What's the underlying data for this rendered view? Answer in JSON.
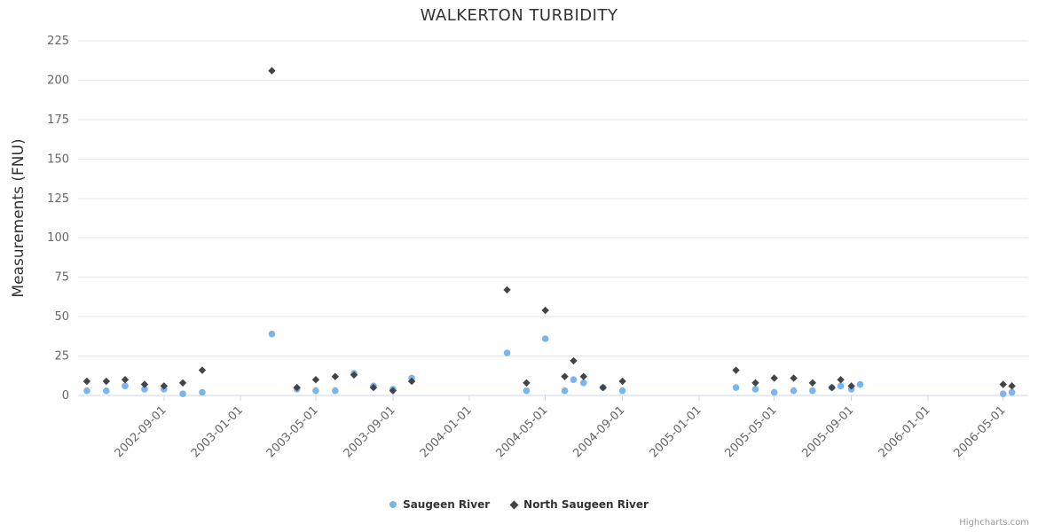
{
  "credits_label": "Highcharts.com",
  "chart_data": {
    "type": "scatter",
    "title": "WALKERTON TURBIDITY",
    "xlabel": "",
    "ylabel": "Measurements (FNU)",
    "ylim": [
      0,
      225
    ],
    "y_ticks": [
      0,
      25,
      50,
      75,
      100,
      125,
      150,
      175,
      200,
      225
    ],
    "x_ticks": [
      "2002-09-01",
      "2003-01-01",
      "2003-05-01",
      "2003-09-01",
      "2004-01-01",
      "2004-05-01",
      "2004-09-01",
      "2005-01-01",
      "2005-05-01",
      "2005-09-01",
      "2006-01-01",
      "2006-05-01"
    ],
    "x_range": [
      "2002-04-17",
      "2006-06-10"
    ],
    "grid": true,
    "legend_position": "bottom",
    "series": [
      {
        "name": "Saugeen River",
        "color": "#7cb5ec",
        "marker": "circle",
        "points": [
          [
            "2002-05-01",
            3
          ],
          [
            "2002-06-01",
            3
          ],
          [
            "2002-07-01",
            6
          ],
          [
            "2002-08-01",
            4
          ],
          [
            "2002-09-01",
            4
          ],
          [
            "2002-10-01",
            1
          ],
          [
            "2002-11-01",
            2
          ],
          [
            "2003-02-20",
            39
          ],
          [
            "2003-04-01",
            4
          ],
          [
            "2003-05-01",
            3
          ],
          [
            "2003-06-01",
            3
          ],
          [
            "2003-07-01",
            14
          ],
          [
            "2003-08-01",
            6
          ],
          [
            "2003-09-01",
            4
          ],
          [
            "2003-10-01",
            11
          ],
          [
            "2004-03-01",
            27
          ],
          [
            "2004-04-01",
            3
          ],
          [
            "2004-05-01",
            36
          ],
          [
            "2004-06-01",
            3
          ],
          [
            "2004-06-15",
            10
          ],
          [
            "2004-07-01",
            8
          ],
          [
            "2004-08-01",
            5
          ],
          [
            "2004-09-01",
            3
          ],
          [
            "2005-03-01",
            5
          ],
          [
            "2005-04-01",
            4
          ],
          [
            "2005-05-01",
            2
          ],
          [
            "2005-06-01",
            3
          ],
          [
            "2005-07-01",
            3
          ],
          [
            "2005-08-01",
            5
          ],
          [
            "2005-08-15",
            6
          ],
          [
            "2005-09-01",
            4
          ],
          [
            "2005-09-15",
            7
          ],
          [
            "2006-05-01",
            1
          ],
          [
            "2006-05-15",
            2
          ]
        ]
      },
      {
        "name": "North Saugeen River",
        "color": "#434348",
        "marker": "diamond",
        "points": [
          [
            "2002-05-01",
            9
          ],
          [
            "2002-06-01",
            9
          ],
          [
            "2002-07-01",
            10
          ],
          [
            "2002-08-01",
            7
          ],
          [
            "2002-09-01",
            6
          ],
          [
            "2002-10-01",
            8
          ],
          [
            "2002-11-01",
            16
          ],
          [
            "2003-02-20",
            206
          ],
          [
            "2003-04-01",
            5
          ],
          [
            "2003-05-01",
            10
          ],
          [
            "2003-06-01",
            12
          ],
          [
            "2003-07-01",
            13
          ],
          [
            "2003-08-01",
            5
          ],
          [
            "2003-09-01",
            3
          ],
          [
            "2003-10-01",
            9
          ],
          [
            "2004-03-01",
            67
          ],
          [
            "2004-04-01",
            8
          ],
          [
            "2004-05-01",
            54
          ],
          [
            "2004-06-01",
            12
          ],
          [
            "2004-06-15",
            22
          ],
          [
            "2004-07-01",
            12
          ],
          [
            "2004-08-01",
            5
          ],
          [
            "2004-09-01",
            9
          ],
          [
            "2005-03-01",
            16
          ],
          [
            "2005-04-01",
            8
          ],
          [
            "2005-05-01",
            11
          ],
          [
            "2005-06-01",
            11
          ],
          [
            "2005-07-01",
            8
          ],
          [
            "2005-08-01",
            5
          ],
          [
            "2005-08-15",
            10
          ],
          [
            "2005-09-01",
            6
          ],
          [
            "2006-05-01",
            7
          ],
          [
            "2006-05-15",
            6
          ]
        ]
      }
    ]
  }
}
